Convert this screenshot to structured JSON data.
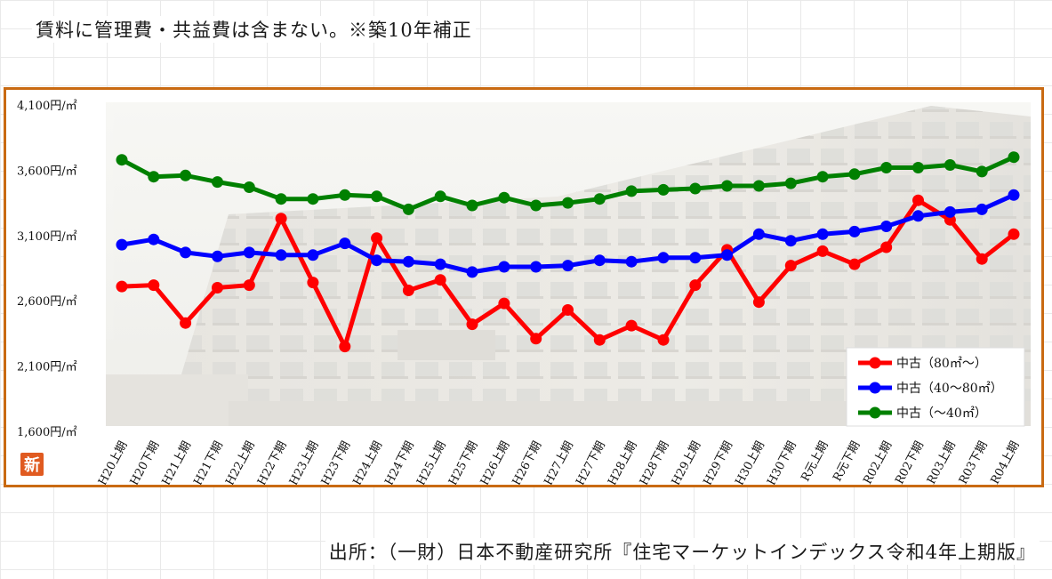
{
  "note": "賃料に管理費・共益費は含まない。※築10年補正",
  "source": "出所：（一財）日本不動産研究所『住宅マーケットインデックス令和4年上期版』",
  "logo_char": "新",
  "colors": {
    "frame": "#c96a12",
    "series": [
      "#ff0000",
      "#0000ff",
      "#008000"
    ]
  },
  "chart_data": {
    "type": "line",
    "ylim": [
      1600,
      4100
    ],
    "y_ticks": [
      1600,
      2100,
      2600,
      3100,
      3600,
      4100
    ],
    "y_tick_labels": [
      "1,600円/㎡",
      "2,100円/㎡",
      "2,600円/㎡",
      "3,100円/㎡",
      "3,600円/㎡",
      "4,100円/㎡"
    ],
    "categories": [
      "H20上期",
      "H20下期",
      "H21上期",
      "H21下期",
      "H22上期",
      "H22下期",
      "H23上期",
      "H23下期",
      "H24上期",
      "H24下期",
      "H25上期",
      "H25下期",
      "H26上期",
      "H26下期",
      "H27上期",
      "H27下期",
      "H28上期",
      "H28下期",
      "H29上期",
      "H29下期",
      "H30上期",
      "H30下期",
      "R元上期",
      "R元下期",
      "R02上期",
      "R02下期",
      "R03上期",
      "R03下期",
      "R04上期"
    ],
    "legend_position": "bottom-right",
    "grid": false,
    "series": [
      {
        "name": "中古（80㎡～）",
        "values": [
          2710,
          2720,
          2430,
          2700,
          2720,
          3230,
          2740,
          2250,
          3080,
          2680,
          2760,
          2420,
          2580,
          2310,
          2530,
          2300,
          2410,
          2300,
          2720,
          2990,
          2590,
          2870,
          2980,
          2880,
          3010,
          3370,
          3220,
          2920,
          3110
        ]
      },
      {
        "name": "中古（40～80㎡）",
        "values": [
          3030,
          3070,
          2970,
          2940,
          2970,
          2950,
          2950,
          3040,
          2910,
          2900,
          2880,
          2820,
          2860,
          2860,
          2870,
          2910,
          2900,
          2930,
          2930,
          2950,
          3110,
          3060,
          3110,
          3130,
          3170,
          3250,
          3280,
          3300,
          3410
        ]
      },
      {
        "name": "中古（～40㎡）",
        "values": [
          3680,
          3550,
          3560,
          3510,
          3470,
          3380,
          3380,
          3410,
          3400,
          3300,
          3400,
          3330,
          3390,
          3330,
          3350,
          3380,
          3440,
          3450,
          3460,
          3480,
          3480,
          3500,
          3550,
          3570,
          3620,
          3620,
          3640,
          3590,
          3700
        ]
      }
    ]
  }
}
